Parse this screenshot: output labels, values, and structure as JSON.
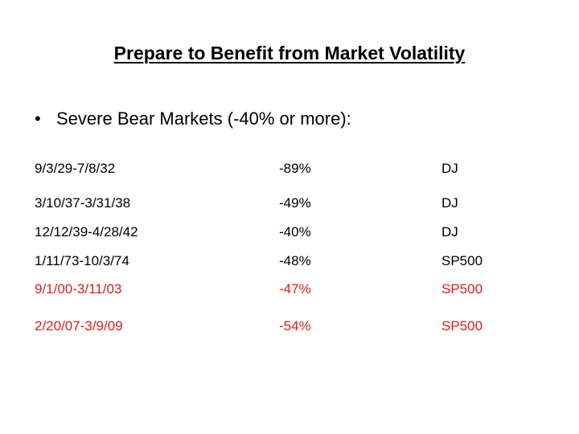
{
  "slide": {
    "title": "Prepare to Benefit from Market Volatility",
    "bullet": {
      "symbol": "•",
      "text": "Severe Bear Markets (-40% or more):"
    }
  },
  "colors": {
    "text": "#000000",
    "highlight": "#d42020"
  },
  "markets": [
    {
      "range": "9/3/29-7/8/32",
      "change": "-89%",
      "index": "DJ",
      "highlight": false
    },
    {
      "range": "3/10/37-3/31/38",
      "change": "-49%",
      "index": "DJ",
      "highlight": false
    },
    {
      "range": "12/12/39-4/28/42",
      "change": "-40%",
      "index": "DJ",
      "highlight": false
    },
    {
      "range": "1/11/73-10/3/74",
      "change": "-48%",
      "index": "SP500",
      "highlight": false
    },
    {
      "range": "9/1/00-3/11/03",
      "change": "-47%",
      "index": "SP500",
      "highlight": true
    },
    {
      "range": "2/20/07-3/9/09",
      "change": "-54%",
      "index": "SP500",
      "highlight": true
    }
  ]
}
